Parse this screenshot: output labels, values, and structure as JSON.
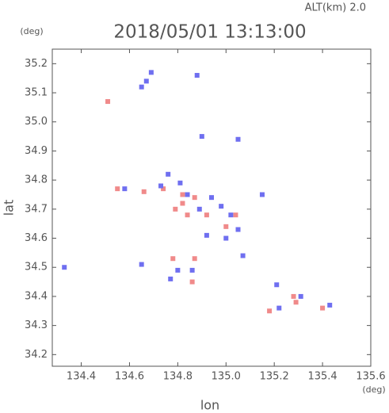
{
  "chart_data": {
    "type": "scatter",
    "title": "2018/05/01 13:13:00",
    "subtitle": "ALT(km) 2.0",
    "x_label": "lon",
    "y_label": "lat",
    "x_unit": "(deg)",
    "y_unit": "(deg)",
    "xlim": [
      134.28,
      135.6
    ],
    "ylim": [
      34.16,
      35.25
    ],
    "xticks": [
      134.4,
      134.6,
      134.8,
      {
        "value": 135,
        "label": "135.0"
      },
      135.2,
      135.4,
      135.6
    ],
    "yticks": [
      34.2,
      34.3,
      34.4,
      34.5,
      34.6,
      34.7,
      34.8,
      34.9,
      {
        "value": 35,
        "label": "35.0"
      },
      35.1,
      35.2
    ],
    "series": [
      {
        "color": "#f08a8a",
        "x": [
          134.51,
          134.82,
          134.79,
          134.87,
          134.92,
          135.0,
          135.04,
          134.86,
          134.87,
          135.28,
          135.29,
          135.18,
          135.4,
          134.78,
          134.55,
          134.66,
          134.82,
          134.74,
          134.84
        ],
        "y": [
          35.07,
          34.75,
          34.7,
          34.74,
          34.68,
          34.64,
          34.68,
          34.45,
          34.53,
          34.4,
          34.38,
          34.35,
          34.36,
          34.53,
          34.77,
          34.76,
          34.72,
          34.77,
          34.68
        ]
      },
      {
        "color": "#6f6ff0",
        "x": [
          134.67,
          134.65,
          134.69,
          134.9,
          135.15,
          134.33,
          134.86,
          134.77,
          134.73,
          134.76,
          134.84,
          134.94,
          134.98,
          135.02,
          135.05,
          134.92,
          135.0,
          134.8,
          135.22,
          135.43,
          135.31,
          134.88,
          135.05,
          134.58,
          134.65,
          134.89,
          134.81,
          135.07,
          135.21
        ],
        "y": [
          35.14,
          35.12,
          35.17,
          34.95,
          34.75,
          34.5,
          34.49,
          34.46,
          34.78,
          34.82,
          34.75,
          34.74,
          34.71,
          34.68,
          34.63,
          34.61,
          34.6,
          34.49,
          34.36,
          34.37,
          34.4,
          35.16,
          34.94,
          34.77,
          34.51,
          34.7,
          34.79,
          34.54,
          34.44
        ]
      }
    ]
  }
}
